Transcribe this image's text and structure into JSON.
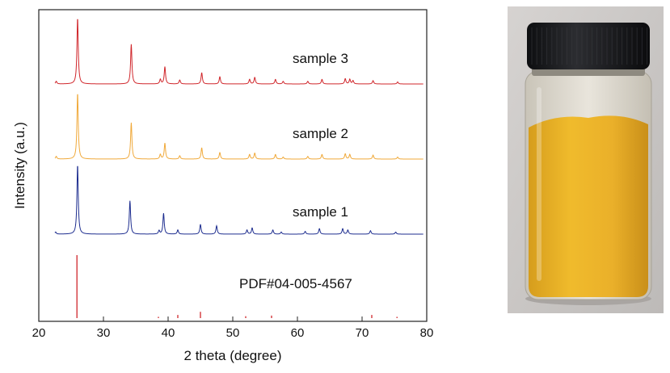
{
  "chart_data": {
    "type": "line",
    "xlabel": "2 theta (degree)",
    "ylabel": "Intensity (a.u.)",
    "xlim": [
      20,
      80
    ],
    "xticks": [
      "20",
      "30",
      "40",
      "50",
      "60",
      "70",
      "80"
    ],
    "y_ticks_shown": false,
    "grid": false,
    "series": [
      {
        "name": "sample 3",
        "color": "#d0262b",
        "peaks": [
          [
            22.7,
            0.04
          ],
          [
            26.0,
            1.0
          ],
          [
            34.3,
            0.6
          ],
          [
            38.8,
            0.07
          ],
          [
            39.5,
            0.26
          ],
          [
            41.8,
            0.06
          ],
          [
            45.2,
            0.17
          ],
          [
            48.0,
            0.11
          ],
          [
            52.6,
            0.07
          ],
          [
            53.4,
            0.1
          ],
          [
            56.6,
            0.07
          ],
          [
            57.8,
            0.04
          ],
          [
            61.6,
            0.04
          ],
          [
            63.8,
            0.07
          ],
          [
            67.4,
            0.08
          ],
          [
            68.1,
            0.07
          ],
          [
            68.6,
            0.05
          ],
          [
            71.7,
            0.05
          ],
          [
            75.5,
            0.03
          ]
        ]
      },
      {
        "name": "sample 2",
        "color": "#f0a93a",
        "peaks": [
          [
            22.7,
            0.04
          ],
          [
            26.0,
            1.0
          ],
          [
            34.3,
            0.55
          ],
          [
            38.8,
            0.07
          ],
          [
            39.5,
            0.24
          ],
          [
            41.8,
            0.05
          ],
          [
            45.2,
            0.17
          ],
          [
            48.0,
            0.1
          ],
          [
            52.6,
            0.07
          ],
          [
            53.4,
            0.09
          ],
          [
            56.6,
            0.07
          ],
          [
            57.8,
            0.03
          ],
          [
            61.6,
            0.04
          ],
          [
            63.8,
            0.07
          ],
          [
            67.4,
            0.08
          ],
          [
            68.1,
            0.07
          ],
          [
            71.7,
            0.06
          ],
          [
            75.5,
            0.03
          ]
        ]
      },
      {
        "name": "sample 1",
        "color": "#1d2d8f",
        "peaks": [
          [
            22.6,
            0.03
          ],
          [
            26.0,
            1.0
          ],
          [
            34.1,
            0.48
          ],
          [
            38.6,
            0.05
          ],
          [
            39.3,
            0.3
          ],
          [
            41.5,
            0.06
          ],
          [
            45.0,
            0.14
          ],
          [
            47.5,
            0.12
          ],
          [
            52.2,
            0.06
          ],
          [
            53.0,
            0.09
          ],
          [
            56.2,
            0.06
          ],
          [
            57.5,
            0.03
          ],
          [
            61.2,
            0.04
          ],
          [
            63.4,
            0.08
          ],
          [
            67.0,
            0.08
          ],
          [
            67.8,
            0.06
          ],
          [
            71.3,
            0.05
          ],
          [
            75.2,
            0.03
          ]
        ]
      },
      {
        "name": "PDF#04-005-4567",
        "color": "#d0262b",
        "reference": true,
        "peaks": [
          [
            25.9,
            1.0
          ],
          [
            38.5,
            0.02
          ],
          [
            41.5,
            0.05
          ],
          [
            45.0,
            0.1
          ],
          [
            52.0,
            0.03
          ],
          [
            56.0,
            0.04
          ],
          [
            71.5,
            0.05
          ],
          [
            75.4,
            0.02
          ]
        ]
      }
    ]
  },
  "photo": {
    "alt": "",
    "cap_color": "#1b1c1f",
    "powder_color": "#e6ad22",
    "glass_color": "#d8d3c8",
    "background_color": "#c9c6c4"
  }
}
